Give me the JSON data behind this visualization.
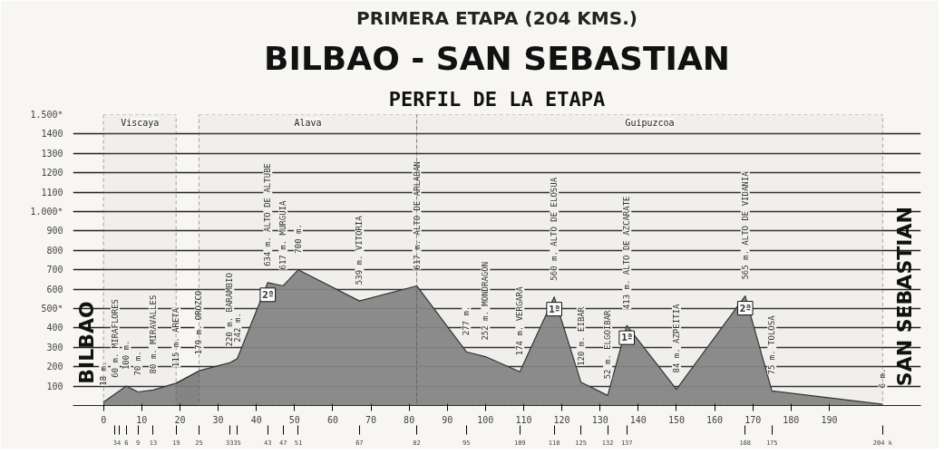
{
  "chart_data": {
    "type": "area",
    "title": "PRIMERA ETAPA (204 KMS.)",
    "subtitle": "BILBAO - SAN SEBASTIAN",
    "x": [
      0,
      3,
      6,
      9,
      13,
      19,
      25,
      33,
      35,
      43,
      47,
      51,
      67,
      82,
      95,
      100,
      109,
      118,
      125,
      132,
      137,
      150,
      168,
      175,
      204
    ],
    "series": [
      {
        "color": "#7d7d7d",
        "values": [
          18,
          60,
          100,
          70,
          80,
          115,
          179,
          220,
          242,
          634,
          617,
          700,
          539,
          617,
          277,
          252,
          174,
          560,
          120,
          52,
          413,
          84,
          565,
          75,
          6
        ],
        "value_labels": [
          "18 m.",
          "60 m. MIRAFLORES",
          "100 m.",
          "70 m.",
          "80 m. MIRAVALLES",
          "115 m. ARETA",
          "179 m. OROZCO",
          "220 m. BARAMBIO",
          "242 m.",
          "634 m. ALTO DE ALTUBE",
          "617 m. MURGUIA",
          "700 m.",
          "539 m. VITORIA",
          "617 m. ALTO DE ARLABAN",
          "277 m.",
          "252 m. MONDRAGON",
          "174 m. VERGARA",
          "560 m. ALTO DE ELOSUA",
          "120 m. EIBAR",
          "52 m. ELGOIBAR",
          "413 m. ALTO DE AZCARATE",
          "84 m. AZPEITIA",
          "565 m. ALTO DE VIDANIA",
          "75 m. TOLOSA",
          "6 m."
        ]
      }
    ],
    "xlim": [
      -8,
      214
    ],
    "xticks": [
      0,
      10,
      20,
      30,
      40,
      50,
      60,
      70,
      80,
      90,
      100,
      110,
      120,
      130,
      140,
      150,
      160,
      170,
      180,
      190
    ],
    "x2lim": [
      -8,
      214
    ],
    "x2ticks": [
      3,
      4,
      6,
      9,
      13,
      19,
      25,
      33,
      35,
      43,
      47,
      51,
      67,
      82,
      95,
      109,
      118,
      125,
      132,
      137,
      168,
      175,
      {
        "value": 204,
        "label": "204 k"
      }
    ],
    "ylim": [
      0,
      1500
    ],
    "yticks": [
      100,
      200,
      300,
      400,
      {
        "value": 500,
        "label": "500ᵐ"
      },
      600,
      700,
      800,
      900,
      {
        "value": 1000,
        "label": "1.000ᵐ"
      },
      1100,
      1200,
      1300,
      1400,
      {
        "value": 1500,
        "label": "1.500ᵐ"
      }
    ],
    "grid": "y",
    "bands": [
      {
        "axis": "x",
        "from": 0,
        "to": 19,
        "label": "Viscaya"
      },
      {
        "axis": "x",
        "from": 25,
        "to": 82,
        "label": "Alava"
      },
      {
        "axis": "x",
        "from": 82,
        "to": 204,
        "label": "Guipuzcoa"
      }
    ],
    "annotations": [
      "PERFIL DE LA ETAPA",
      {
        "text": "BILBAO",
        "x": 0,
        "y": 18
      },
      {
        "text": "SAN SEBASTIAN",
        "x": 204,
        "y": 6
      },
      {
        "text": "2ª",
        "x": 43,
        "y": 634
      },
      {
        "text": "1ª",
        "x": 118,
        "y": 560
      },
      {
        "text": "1ª",
        "x": 137,
        "y": 413
      },
      {
        "text": "2ª",
        "x": 168,
        "y": 565
      }
    ]
  }
}
